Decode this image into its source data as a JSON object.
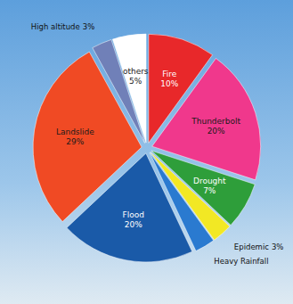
{
  "chart_data": {
    "type": "pie",
    "categories": [
      "Fire",
      "Thunderbolt",
      "Drought",
      "Epidemic",
      "Heavy Rainfall",
      "Flood",
      "Landslide",
      "High altitude",
      "others"
    ],
    "values": [
      10,
      20,
      7,
      3,
      3,
      20,
      29,
      3,
      5
    ],
    "value_labels": [
      "10%",
      "20%",
      "7%",
      "3%",
      null,
      "20%",
      "29%",
      "3%",
      "5%"
    ],
    "colors": [
      "#e8282a",
      "#f0388c",
      "#2e9e3a",
      "#f2e824",
      "#2a7ad0",
      "#1a5aa8",
      "#f04a24",
      "#7080b8",
      "#ffffff"
    ],
    "data_labels": true
  }
}
